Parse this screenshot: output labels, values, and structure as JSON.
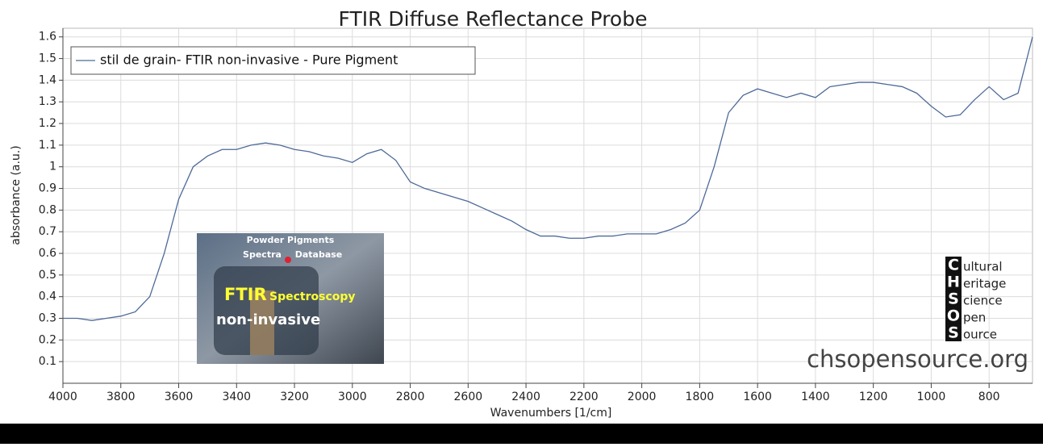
{
  "chart_data": {
    "type": "line",
    "title": "FTIR Diffuse Reflectance Probe",
    "xlabel": "Wavenumbers [1/cm]",
    "ylabel": "absorbance (a.u.)",
    "xlim": [
      4000,
      650
    ],
    "ylim": [
      0,
      1.64
    ],
    "xticks": [
      4000,
      3800,
      3600,
      3400,
      3200,
      3000,
      2800,
      2600,
      2400,
      2200,
      2000,
      1800,
      1600,
      1400,
      1200,
      1000,
      800
    ],
    "yticks": [
      0.1,
      0.2,
      0.3,
      0.4,
      0.5,
      0.6,
      0.7,
      0.8,
      0.9,
      1,
      1.1,
      1.2,
      1.3,
      1.4,
      1.5,
      1.6
    ],
    "grid": true,
    "legend": "top-left",
    "x": [
      4000,
      3950,
      3900,
      3850,
      3800,
      3750,
      3700,
      3650,
      3600,
      3550,
      3500,
      3450,
      3400,
      3350,
      3300,
      3250,
      3200,
      3150,
      3100,
      3050,
      3000,
      2950,
      2900,
      2850,
      2800,
      2750,
      2700,
      2650,
      2600,
      2550,
      2500,
      2450,
      2400,
      2350,
      2300,
      2250,
      2200,
      2150,
      2100,
      2050,
      2000,
      1950,
      1900,
      1850,
      1800,
      1750,
      1700,
      1650,
      1600,
      1550,
      1500,
      1450,
      1400,
      1350,
      1300,
      1250,
      1200,
      1150,
      1100,
      1050,
      1000,
      950,
      900,
      850,
      800,
      750,
      700,
      650
    ],
    "series": [
      {
        "name": "stil de grain- FTIR non-invasive - Pure Pigment",
        "color": "#4d6a98",
        "values": [
          0.3,
          0.3,
          0.29,
          0.3,
          0.31,
          0.33,
          0.4,
          0.6,
          0.85,
          1.0,
          1.05,
          1.08,
          1.08,
          1.1,
          1.11,
          1.1,
          1.08,
          1.07,
          1.05,
          1.04,
          1.02,
          1.06,
          1.08,
          1.03,
          0.93,
          0.9,
          0.88,
          0.86,
          0.84,
          0.81,
          0.78,
          0.75,
          0.71,
          0.68,
          0.68,
          0.67,
          0.67,
          0.68,
          0.68,
          0.69,
          0.69,
          0.69,
          0.71,
          0.74,
          0.8,
          1.0,
          1.25,
          1.33,
          1.36,
          1.34,
          1.32,
          1.34,
          1.32,
          1.37,
          1.38,
          1.39,
          1.39,
          1.38,
          1.37,
          1.34,
          1.28,
          1.23,
          1.24,
          1.31,
          1.37,
          1.31,
          1.34,
          1.6
        ]
      }
    ],
    "inset_texts": [
      "Powder Pigments",
      "Spectra",
      "Database",
      "FTIR",
      "Spectroscopy",
      "non-invasive"
    ],
    "logo": [
      {
        "letter": "C",
        "word": "ultural"
      },
      {
        "letter": "H",
        "word": "eritage"
      },
      {
        "letter": "S",
        "word": "cience"
      },
      {
        "letter": "O",
        "word": "pen"
      },
      {
        "letter": "S",
        "word": "ource"
      }
    ],
    "watermark": "chsopensource.org"
  }
}
